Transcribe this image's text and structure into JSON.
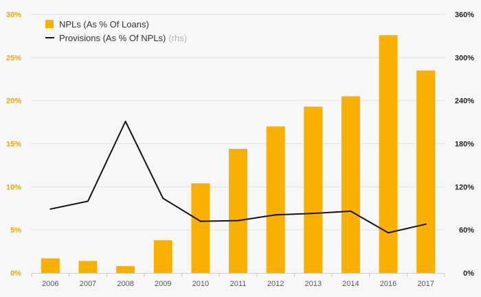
{
  "chart_data": {
    "type": "bar",
    "categories": [
      "2006",
      "2007",
      "2008",
      "2009",
      "2010",
      "2011",
      "2012",
      "2013",
      "2014",
      "2016",
      "2017"
    ],
    "series": [
      {
        "name": "NPLs (As % Of Loans)",
        "type": "bar",
        "axis": "left",
        "color": "#f9b000",
        "values": [
          1.7,
          1.4,
          0.8,
          3.8,
          10.4,
          14.4,
          17.0,
          19.3,
          20.5,
          27.6,
          23.5
        ]
      },
      {
        "name": "Provisions (As % Of NPLs)",
        "note": "(rhs)",
        "type": "line",
        "axis": "right",
        "color": "#111111",
        "values": [
          89,
          100,
          211,
          104,
          72,
          73,
          81,
          83,
          86,
          56,
          68
        ]
      }
    ],
    "left_axis": {
      "range": [
        0,
        30
      ],
      "ticks": [
        0,
        5,
        10,
        15,
        20,
        25,
        30
      ],
      "labels": [
        "0%",
        "5%",
        "10%",
        "15%",
        "20%",
        "25%",
        "30%"
      ],
      "color": "#f0a500"
    },
    "right_axis": {
      "range": [
        0,
        360
      ],
      "ticks": [
        0,
        60,
        120,
        180,
        240,
        300,
        360
      ],
      "labels": [
        "0%",
        "60%",
        "120%",
        "180%",
        "240%",
        "300%",
        "360%"
      ]
    },
    "grid": true,
    "legend_position": "top-left"
  }
}
